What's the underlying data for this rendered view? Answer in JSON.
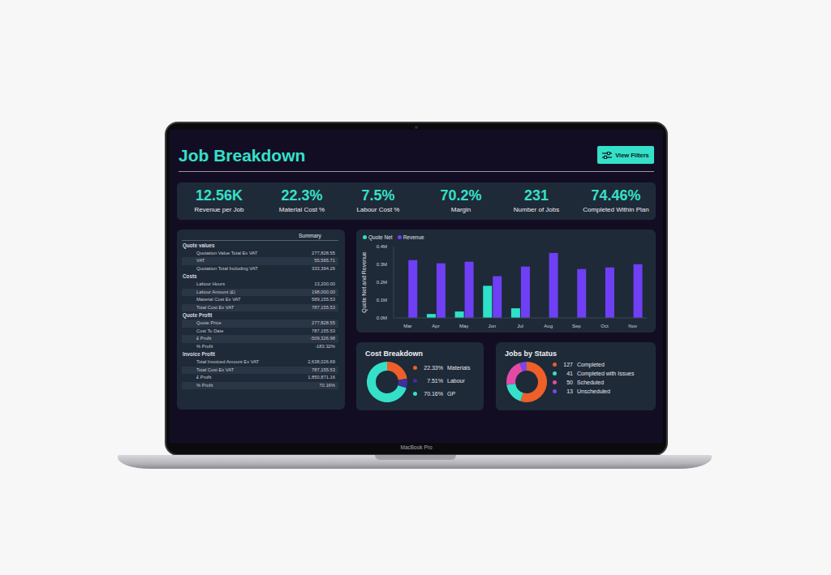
{
  "device_label": "MacBook Pro",
  "header": {
    "title": "Job Breakdown",
    "button": "View Filters"
  },
  "kpis": [
    {
      "value": "12.56K",
      "label": "Revenue per Job"
    },
    {
      "value": "22.3%",
      "label": "Material Cost %"
    },
    {
      "value": "7.5%",
      "label": "Labour Cost %"
    },
    {
      "value": "70.2%",
      "label": "Margin"
    },
    {
      "value": "231",
      "label": "Number of Jobs"
    },
    {
      "value": "74.46%",
      "label": "Completed Within Plan"
    }
  ],
  "summary_table": {
    "header": "Summary",
    "sections": [
      {
        "title": "Quote values",
        "rows": [
          [
            "Quotation Value Total Ex VAT",
            "277,828.55"
          ],
          [
            "VAT",
            "55,565.71"
          ],
          [
            "Quotation Total Including VAT",
            "333,394.26"
          ]
        ]
      },
      {
        "title": "Costs",
        "rows": [
          [
            "Labour Hours",
            "13,200.00"
          ],
          [
            "Labour Amount (£)",
            "198,000.00"
          ],
          [
            "Material Cost Ex VAT",
            "589,155.53"
          ],
          [
            "Total Cost Ex VAT",
            "787,155.53"
          ]
        ]
      },
      {
        "title": "Quote Profit",
        "rows": [
          [
            "Quote Price",
            "277,828.55"
          ],
          [
            "Cost To Date",
            "787,155.53"
          ],
          [
            "£ Profit",
            "-509,326.98"
          ],
          [
            "% Profit",
            "-183.32%"
          ]
        ]
      },
      {
        "title": "Invoice Profit",
        "rows": [
          [
            "Total Invoiced Amount Ex VAT",
            "2,638,026.69"
          ],
          [
            "Total Cost Ex VAT",
            "787,155.53"
          ],
          [
            "£ Profit",
            "1,850,871.16"
          ],
          [
            "% Profit",
            "70.16%"
          ]
        ]
      }
    ]
  },
  "chart_data": [
    {
      "type": "bar",
      "categories": [
        "Mar",
        "Apr",
        "May",
        "Jun",
        "Jul",
        "Aug",
        "Sep",
        "Oct",
        "Nov"
      ],
      "series": [
        {
          "name": "Quote Net",
          "color": "#2de2c8",
          "values": [
            null,
            0.022,
            0.036,
            0.18,
            0.054,
            null,
            null,
            null,
            null
          ]
        },
        {
          "name": "Revenue",
          "color": "#6f3ff5",
          "values": [
            0.324,
            0.306,
            0.315,
            0.234,
            0.288,
            0.364,
            0.274,
            0.283,
            0.301
          ]
        }
      ],
      "ylabel": "Quote Net and Revenue",
      "ylim": [
        0,
        0.4
      ],
      "yticks": [
        {
          "value": 0,
          "label": "0.0M"
        },
        {
          "value": 0.1,
          "label": "0.1M"
        },
        {
          "value": 0.2,
          "label": "0.2M"
        },
        {
          "value": 0.3,
          "label": "0.3M"
        },
        {
          "value": 0.4,
          "label": "0.4M"
        }
      ],
      "legend": "top left",
      "grid": false
    },
    {
      "type": "pie",
      "title": "Cost Breakdown",
      "categories": [
        "Materials",
        "Labour",
        "GP"
      ],
      "values": [
        22.33,
        7.51,
        70.16
      ],
      "value_labels": [
        "22.33%",
        "7.51%",
        "70.16%"
      ],
      "colors": [
        "#ee5f2a",
        "#3d2f9e",
        "#35e0c8"
      ]
    },
    {
      "type": "pie",
      "title": "Jobs by Status",
      "categories": [
        "Completed",
        "Completed with Issues",
        "Scheduled",
        "Unscheduled"
      ],
      "values": [
        127,
        41,
        50,
        13
      ],
      "colors": [
        "#ee5f2a",
        "#35e0c8",
        "#e34aa8",
        "#7a46e8"
      ]
    }
  ]
}
